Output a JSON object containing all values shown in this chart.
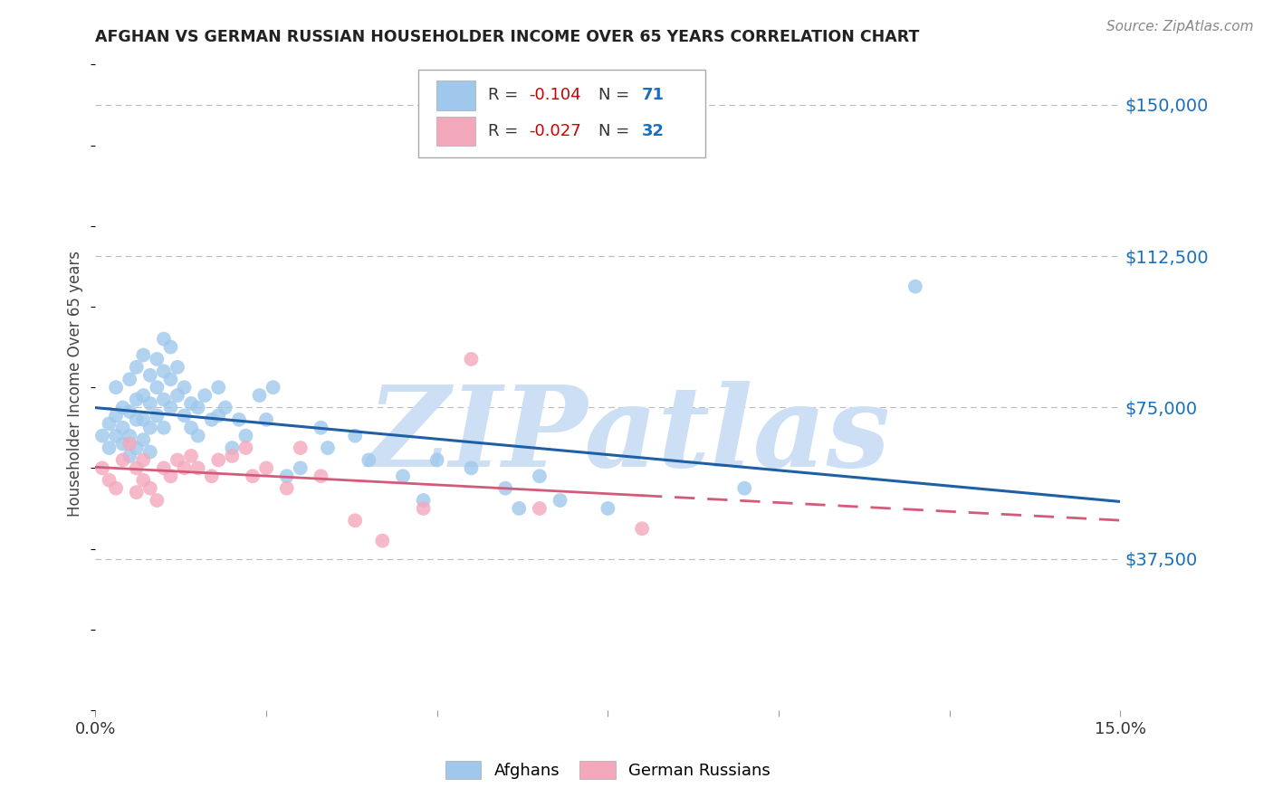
{
  "title": "AFGHAN VS GERMAN RUSSIAN HOUSEHOLDER INCOME OVER 65 YEARS CORRELATION CHART",
  "source": "Source: ZipAtlas.com",
  "ylabel": "Householder Income Over 65 years",
  "ytick_labels": [
    "$37,500",
    "$75,000",
    "$112,500",
    "$150,000"
  ],
  "ytick_values": [
    37500,
    75000,
    112500,
    150000
  ],
  "ylim": [
    0,
    162000
  ],
  "xlim": [
    0.0,
    0.15
  ],
  "background_color": "#ffffff",
  "grid_color": "#bbbbbb",
  "afghan_color": "#9FC8EC",
  "german_color": "#F4A8BC",
  "afghan_line_color": "#1f5fa6",
  "german_line_color": "#d45a7a",
  "afghan_R": "-0.104",
  "afghan_N": "71",
  "german_R": "-0.027",
  "german_N": "32",
  "afghan_x": [
    0.001,
    0.002,
    0.002,
    0.003,
    0.003,
    0.003,
    0.004,
    0.004,
    0.004,
    0.005,
    0.005,
    0.005,
    0.005,
    0.006,
    0.006,
    0.006,
    0.006,
    0.007,
    0.007,
    0.007,
    0.007,
    0.008,
    0.008,
    0.008,
    0.008,
    0.009,
    0.009,
    0.009,
    0.01,
    0.01,
    0.01,
    0.01,
    0.011,
    0.011,
    0.011,
    0.012,
    0.012,
    0.013,
    0.013,
    0.014,
    0.014,
    0.015,
    0.015,
    0.016,
    0.017,
    0.018,
    0.018,
    0.019,
    0.02,
    0.021,
    0.022,
    0.024,
    0.025,
    0.026,
    0.028,
    0.03,
    0.033,
    0.034,
    0.038,
    0.04,
    0.045,
    0.048,
    0.05,
    0.055,
    0.06,
    0.062,
    0.065,
    0.068,
    0.075,
    0.095,
    0.12
  ],
  "afghan_y": [
    68000,
    71000,
    65000,
    73000,
    80000,
    68000,
    75000,
    70000,
    66000,
    82000,
    74000,
    68000,
    63000,
    77000,
    85000,
    72000,
    65000,
    88000,
    78000,
    72000,
    67000,
    83000,
    76000,
    70000,
    64000,
    87000,
    80000,
    73000,
    92000,
    84000,
    77000,
    70000,
    90000,
    82000,
    75000,
    85000,
    78000,
    80000,
    73000,
    76000,
    70000,
    75000,
    68000,
    78000,
    72000,
    80000,
    73000,
    75000,
    65000,
    72000,
    68000,
    78000,
    72000,
    80000,
    58000,
    60000,
    70000,
    65000,
    68000,
    62000,
    58000,
    52000,
    62000,
    60000,
    55000,
    50000,
    58000,
    52000,
    50000,
    55000,
    105000
  ],
  "german_x": [
    0.001,
    0.002,
    0.003,
    0.004,
    0.005,
    0.006,
    0.006,
    0.007,
    0.007,
    0.008,
    0.009,
    0.01,
    0.011,
    0.012,
    0.013,
    0.014,
    0.015,
    0.017,
    0.018,
    0.02,
    0.022,
    0.023,
    0.025,
    0.028,
    0.03,
    0.033,
    0.038,
    0.042,
    0.048,
    0.055,
    0.065,
    0.08
  ],
  "german_y": [
    60000,
    57000,
    55000,
    62000,
    66000,
    60000,
    54000,
    62000,
    57000,
    55000,
    52000,
    60000,
    58000,
    62000,
    60000,
    63000,
    60000,
    58000,
    62000,
    63000,
    65000,
    58000,
    60000,
    55000,
    65000,
    58000,
    47000,
    42000,
    50000,
    87000,
    50000,
    45000
  ],
  "watermark_text": "ZIPatlas",
  "legend_label_afghan": "Afghans",
  "legend_label_german": "German Russians"
}
